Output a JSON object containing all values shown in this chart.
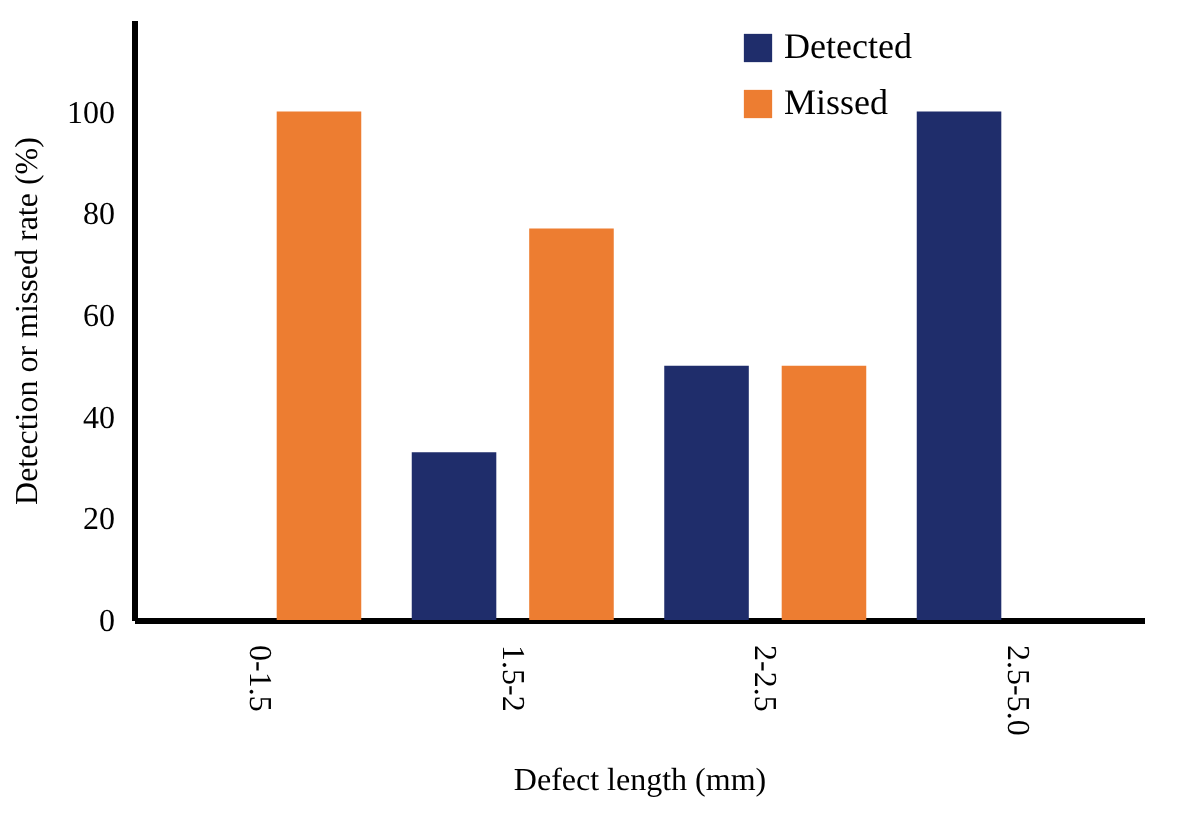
{
  "chart_data": {
    "type": "bar",
    "xlabel": "Defect length (mm)",
    "ylabel": "Detection or missed rate (%)",
    "categories": [
      "0-1.5",
      "1.5-2",
      "2-2.5",
      "2.5-5.0"
    ],
    "series": [
      {
        "name": "Detected",
        "color": "#1f2d6b",
        "values": [
          0,
          33,
          50,
          100
        ]
      },
      {
        "name": "Missed",
        "color": "#ed7d31",
        "values": [
          100,
          77,
          50,
          0
        ]
      }
    ],
    "ylim": [
      0,
      118
    ],
    "yticks": [
      0,
      20,
      40,
      60,
      80,
      100
    ],
    "grid": false,
    "legend": "top right"
  }
}
